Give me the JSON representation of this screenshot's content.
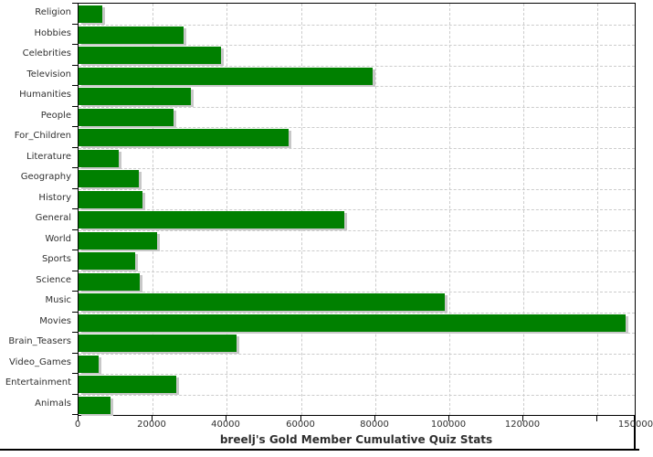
{
  "chart_data": {
    "type": "bar",
    "orientation": "horizontal",
    "title": "breelj's Gold Member Cumulative Quiz Stats",
    "categories": [
      "Religion",
      "Hobbies",
      "Celebrities",
      "Television",
      "Humanities",
      "People",
      "For_Children",
      "Literature",
      "Geography",
      "History",
      "General",
      "World",
      "Sports",
      "Science",
      "Music",
      "Movies",
      "Brain_Teasers",
      "Video_Games",
      "Entertainment",
      "Animals"
    ],
    "values": [
      6500,
      28300,
      38500,
      79300,
      30400,
      25500,
      56700,
      10900,
      16200,
      17300,
      71700,
      21300,
      15300,
      16500,
      98700,
      147500,
      42500,
      5300,
      26300,
      8700
    ],
    "xlim": [
      0,
      150000
    ],
    "x_ticks": [
      {
        "value": 0,
        "label": "0"
      },
      {
        "value": 20000,
        "label": "20000"
      },
      {
        "value": 40000,
        "label": "40000"
      },
      {
        "value": 60000,
        "label": "60000"
      },
      {
        "value": 80000,
        "label": "80000"
      },
      {
        "value": 100000,
        "label": "100000"
      },
      {
        "value": 120000,
        "label": "120000"
      },
      {
        "value": 140000,
        "label": ""
      }
    ],
    "x_edge_label": "150000",
    "grid": "dashed",
    "legend": "none",
    "bar_color": "#008000",
    "bar_shadow_color": "#c8c8c8",
    "grid_color": "#cccccc",
    "axis_color": "#000000",
    "text_color": "#303030"
  }
}
